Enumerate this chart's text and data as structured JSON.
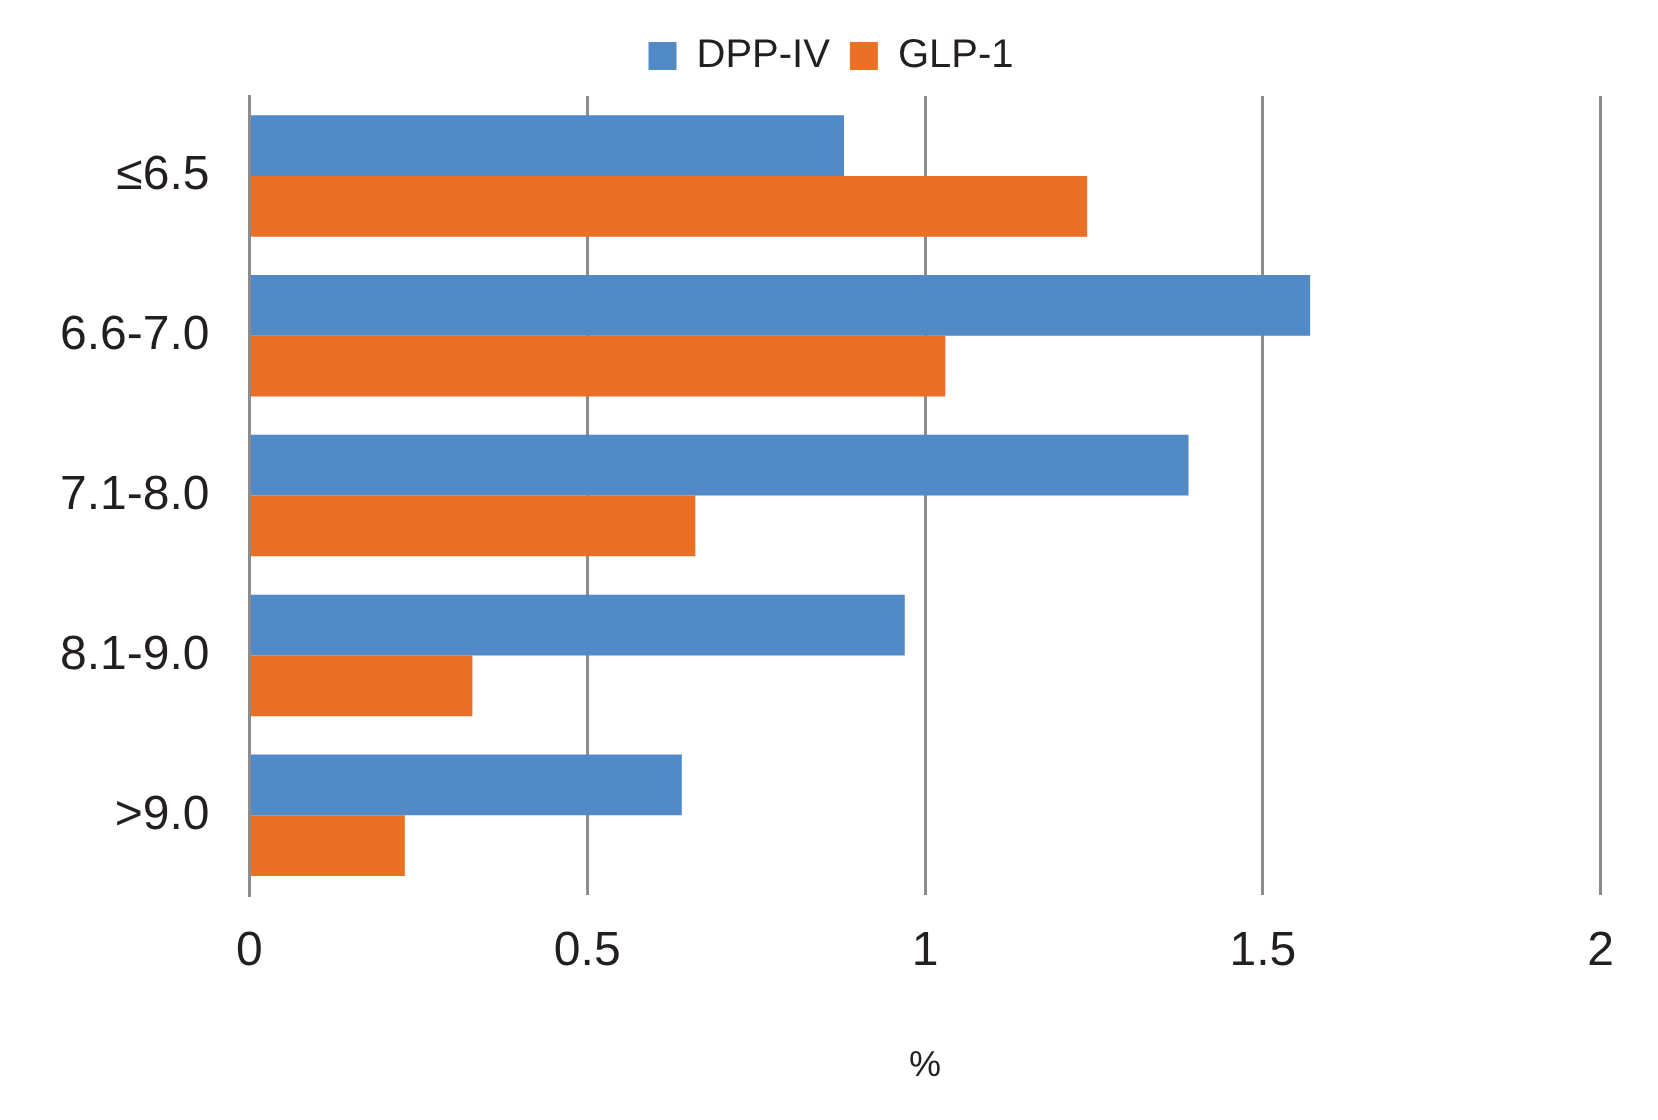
{
  "chart_data": {
    "type": "bar",
    "orientation": "horizontal",
    "xlabel": "%",
    "categories": [
      "≤6.5",
      "6.6-7.0",
      "7.1-8.0",
      "8.1-9.0",
      ">9.0"
    ],
    "series": [
      {
        "name": "DPP-IV",
        "color": "#5289c7",
        "values": [
          0.88,
          1.57,
          1.39,
          0.97,
          0.64
        ]
      },
      {
        "name": "GLP-1",
        "color": "#e97024",
        "values": [
          1.24,
          1.03,
          0.66,
          0.33,
          0.23
        ]
      }
    ],
    "xlim": [
      0,
      2
    ],
    "xticks": [
      0,
      0.5,
      1,
      1.5,
      2
    ],
    "grid": "x",
    "legend": "top"
  }
}
